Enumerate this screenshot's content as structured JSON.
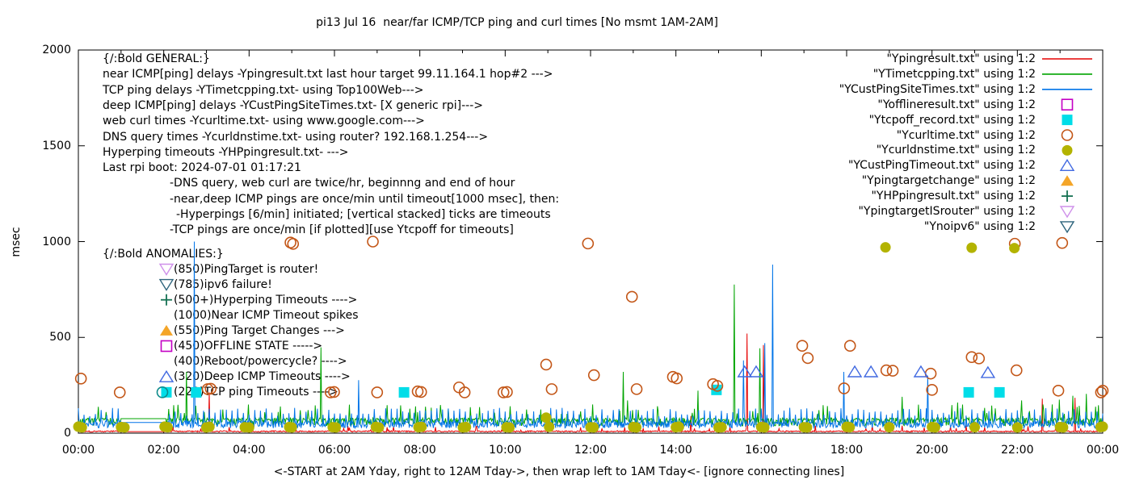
{
  "title": "pi13 Jul 16  near/far ICMP/TCP ping and curl times [No msmt 1AM-2AM]",
  "ylabel": "msec",
  "xlabel": "<-START at 2AM Yday, right to 12AM Tday->, then wrap left to 1AM Tday<- [ignore connecting lines]",
  "axes": {
    "x_tick_labels": [
      "00:00",
      "02:00",
      "04:00",
      "06:00",
      "08:00",
      "10:00",
      "12:00",
      "14:00",
      "16:00",
      "18:00",
      "20:00",
      "22:00",
      "00:00"
    ],
    "y_tick_labels": [
      "0",
      "500",
      "1000",
      "1500",
      "2000"
    ]
  },
  "legend": {
    "rows": [
      {
        "label": "\"Ypingresult.txt\" using 1:2",
        "swatch": "line",
        "color": "#e60000"
      },
      {
        "label": "\"YTimetcpping.txt\" using 1:2",
        "swatch": "line",
        "color": "#00a400"
      },
      {
        "label": "\"YCustPingSiteTimes.txt\" using 1:2",
        "swatch": "line",
        "color": "#0074e8"
      },
      {
        "label": "\"Yofflineresult.txt\" using 1:2",
        "swatch": "square-open",
        "color": "#c400c4"
      },
      {
        "label": "\"Ytcpoff_record.txt\" using 1:2",
        "swatch": "square-filled",
        "color": "#00dde8"
      },
      {
        "label": "\"Ycurltime.txt\" using 1:2",
        "swatch": "circle-open",
        "color": "#c35617"
      },
      {
        "label": "\"Ycurldnstime.txt\" using 1:2",
        "swatch": "circle-filled",
        "color": "#b3b300"
      },
      {
        "label": "\"YCustPingTimeout.txt\" using 1:2",
        "swatch": "triangle-up-open",
        "color": "#4169e1"
      },
      {
        "label": "\"Ypingtargetchange\" using 1:2",
        "swatch": "triangle-up-filled",
        "color": "#f4a528"
      },
      {
        "label": "\"YHPpingresult.txt\" using 1:2",
        "swatch": "plus",
        "color": "#157152"
      },
      {
        "label": "\"YpingtargetISrouter\" using 1:2",
        "swatch": "triangle-down-open",
        "color": "#cf90ea"
      },
      {
        "label": "\"Ynoipv6\" using 1:2",
        "swatch": "triangle-down-open",
        "color": "#2e657d"
      }
    ]
  },
  "annotations": {
    "general": {
      "lines": [
        {
          "text": "{/:Bold GENERAL:}",
          "indent": 0
        },
        {
          "text": "near ICMP[ping] delays -Ypingresult.txt last hour target 99.11.164.1 hop#2 --->",
          "indent": 0
        },
        {
          "text": "TCP ping delays -YTimetcpping.txt- using Top100Web--->",
          "indent": 0
        },
        {
          "text": "deep ICMP[ping] delays -YCustPingSiteTimes.txt- [X generic rpi]--->",
          "indent": 0
        },
        {
          "text": "web curl times -Ycurltime.txt- using www.google.com--->",
          "indent": 0
        },
        {
          "text": "DNS query times -Ycurldnstime.txt- using router? 192.168.1.254--->",
          "indent": 0
        },
        {
          "text": "Hyperping timeouts -YHPpingresult.txt- --->",
          "indent": 0
        },
        {
          "text": "Last rpi boot: 2024-07-01 01:17:21",
          "indent": 0
        },
        {
          "text": "-DNS query, web curl are twice/hr, beginnng and end of hour",
          "indent": 1
        },
        {
          "text": "-near,deep ICMP pings are once/min until timeout[1000 msec], then:",
          "indent": 1
        },
        {
          "text": "-Hyperpings [6/min] initiated; [vertical stacked] ticks are timeouts",
          "indent": 2
        },
        {
          "text": "-TCP pings are once/min [if plotted][use Ytcpoff for timeouts]",
          "indent": 1
        }
      ]
    },
    "anomalies": {
      "header": "{/:Bold ANOMALIES:}",
      "rows": [
        {
          "text": "(850)PingTarget is router!",
          "markers": [
            {
              "type": "triangle-down-open",
              "color": "#cf90ea"
            }
          ]
        },
        {
          "text": "(785)ipv6 failure!",
          "markers": [
            {
              "type": "triangle-down-open",
              "color": "#2e657d"
            }
          ]
        },
        {
          "text": "(500+)Hyperping Timeouts ---->",
          "markers": [
            {
              "type": "plus",
              "color": "#157152"
            }
          ]
        },
        {
          "text": "(1000)Near ICMP Timeout spikes",
          "markers": []
        },
        {
          "text": "(550)Ping Target Changes --->",
          "markers": [
            {
              "type": "triangle-up-filled",
              "color": "#f4a528"
            }
          ]
        },
        {
          "text": "(450)OFFLINE STATE ----->",
          "markers": [
            {
              "type": "square-open",
              "color": "#c400c4"
            }
          ]
        },
        {
          "text": "(400)Reboot/powercycle? ---->",
          "markers": []
        },
        {
          "text": "(320)Deep ICMP Timeouts ---->",
          "markers": [
            {
              "type": "triangle-up-open",
              "color": "#4169e1"
            }
          ]
        },
        {
          "text": "(220)TCP ping Timeouts ---->",
          "markers": [
            {
              "type": "square-filled",
              "color": "#00dde8"
            },
            {
              "type": "circle-open",
              "color": "#0e8b8b"
            }
          ]
        }
      ]
    }
  },
  "chart_data": {
    "type": "line+scatter",
    "x_range_hours": [
      0,
      24
    ],
    "y_range_msec": [
      0,
      2000
    ],
    "x_major_tick_hours": 2,
    "x_minor_tick_hours": 1,
    "y_major_tick": 500,
    "grid": false,
    "legend_position": "top-right",
    "no_measurement_gap_hours": [
      1.0,
      2.06
    ],
    "series": [
      {
        "name": "Ypingresult.txt",
        "desc": "near ICMP ping delays",
        "type": "line",
        "color": "#e60000",
        "profile": "near-icmp",
        "seed": 101,
        "gap_value": 8,
        "spikes": [
          [
            3.06,
            213
          ],
          [
            14.35,
            90
          ],
          [
            15.67,
            520
          ],
          [
            16.05,
            460
          ],
          [
            22.58,
            180
          ],
          [
            23.35,
            185
          ]
        ]
      },
      {
        "name": "YTimetcpping.txt",
        "desc": "TCP ping delays",
        "type": "line",
        "color": "#00a400",
        "profile": "tcp",
        "seed": 202,
        "gap_value": 76,
        "spikes": [
          [
            2.53,
            320
          ],
          [
            5.68,
            448
          ],
          [
            10.5,
            124
          ],
          [
            12.05,
            150
          ],
          [
            12.76,
            320
          ],
          [
            12.86,
            171
          ],
          [
            14.52,
            222
          ],
          [
            15.37,
            776
          ],
          [
            15.97,
            443
          ],
          [
            19.3,
            190
          ],
          [
            20.6,
            160
          ],
          [
            22.1,
            171
          ],
          [
            22.6,
            150
          ],
          [
            22.98,
            175
          ],
          [
            23.3,
            195
          ],
          [
            23.62,
            205
          ]
        ]
      },
      {
        "name": "YCustPingSiteTimes.txt",
        "desc": "deep ICMP ping delays",
        "type": "line",
        "color": "#0074e8",
        "profile": "deep-icmp",
        "seed": 303,
        "gap_value": 56,
        "spikes": [
          [
            2.72,
            1000
          ],
          [
            6.57,
            277
          ],
          [
            15.58,
            380
          ],
          [
            16.09,
            470
          ],
          [
            16.26,
            880
          ],
          [
            17.93,
            320
          ],
          [
            19.9,
            300
          ]
        ]
      }
    ],
    "scatter": [
      {
        "name": "Yofflineresult.txt",
        "marker": "square-open",
        "color": "#c400c4",
        "points": []
      },
      {
        "name": "Ytcpoff_record.txt",
        "marker": "square-filled",
        "color": "#00dde8",
        "points": [
          [
            2.76,
            213
          ],
          [
            7.63,
            213
          ],
          [
            14.95,
            226
          ],
          [
            20.86,
            213
          ],
          [
            21.58,
            213
          ]
        ]
      },
      {
        "name": "Ycurltime.txt",
        "marker": "circle-open",
        "color": "#c35617",
        "points": [
          [
            0.06,
            285
          ],
          [
            0.97,
            213
          ],
          [
            3.03,
            230
          ],
          [
            3.1,
            232
          ],
          [
            4.97,
            995
          ],
          [
            5.03,
            988
          ],
          [
            5.91,
            213
          ],
          [
            5.99,
            215
          ],
          [
            6.9,
            1000
          ],
          [
            7.0,
            213
          ],
          [
            7.95,
            218
          ],
          [
            8.03,
            215
          ],
          [
            8.92,
            239
          ],
          [
            9.05,
            213
          ],
          [
            9.96,
            213
          ],
          [
            10.04,
            215
          ],
          [
            10.96,
            358
          ],
          [
            11.09,
            230
          ],
          [
            11.94,
            990
          ],
          [
            12.08,
            303
          ],
          [
            12.97,
            712
          ],
          [
            13.08,
            230
          ],
          [
            13.93,
            294
          ],
          [
            14.02,
            286
          ],
          [
            14.87,
            256
          ],
          [
            14.97,
            247
          ],
          [
            16.96,
            456
          ],
          [
            17.09,
            392
          ],
          [
            17.94,
            234
          ],
          [
            18.08,
            456
          ],
          [
            18.93,
            328
          ],
          [
            19.08,
            326
          ],
          [
            19.97,
            311
          ],
          [
            20.0,
            226
          ],
          [
            20.93,
            397
          ],
          [
            21.1,
            390
          ],
          [
            21.94,
            989
          ],
          [
            21.98,
            328
          ],
          [
            22.96,
            222
          ],
          [
            23.05,
            993
          ],
          [
            23.96,
            213
          ],
          [
            24.0,
            222
          ]
        ]
      },
      {
        "name": "Ycurldnstime.txt",
        "marker": "circle-filled",
        "color": "#b3b300",
        "points": [
          [
            0.0,
            34
          ],
          [
            0.08,
            30
          ],
          [
            1.0,
            32
          ],
          [
            1.08,
            30
          ],
          [
            2.02,
            34
          ],
          [
            2.09,
            31
          ],
          [
            3.0,
            30
          ],
          [
            3.07,
            33
          ],
          [
            3.9,
            31
          ],
          [
            4.0,
            30
          ],
          [
            4.94,
            32
          ],
          [
            5.0,
            30
          ],
          [
            5.96,
            31
          ],
          [
            6.03,
            30
          ],
          [
            6.97,
            33
          ],
          [
            7.04,
            30
          ],
          [
            7.97,
            31
          ],
          [
            8.04,
            33
          ],
          [
            9.01,
            30
          ],
          [
            9.08,
            32
          ],
          [
            10.03,
            31
          ],
          [
            10.1,
            30
          ],
          [
            10.96,
            81
          ],
          [
            11.03,
            33
          ],
          [
            12.0,
            31
          ],
          [
            12.07,
            30
          ],
          [
            13.0,
            32
          ],
          [
            13.07,
            30
          ],
          [
            14.0,
            31
          ],
          [
            14.07,
            33
          ],
          [
            15.0,
            30
          ],
          [
            15.07,
            31
          ],
          [
            16.0,
            32
          ],
          [
            16.07,
            30
          ],
          [
            17.0,
            31
          ],
          [
            17.07,
            30
          ],
          [
            18.0,
            33
          ],
          [
            18.07,
            31
          ],
          [
            18.91,
            970
          ],
          [
            19.0,
            31
          ],
          [
            20.0,
            32
          ],
          [
            20.07,
            30
          ],
          [
            20.93,
            968
          ],
          [
            21.0,
            31
          ],
          [
            21.93,
            966
          ],
          [
            22.0,
            30
          ],
          [
            23.0,
            32
          ],
          [
            23.07,
            30
          ],
          [
            23.95,
            32
          ],
          [
            24.0,
            34
          ]
        ]
      },
      {
        "name": "YCustPingTimeout.txt",
        "marker": "triangle-up-open",
        "color": "#4169e1",
        "points": [
          [
            15.61,
            320
          ],
          [
            15.88,
            320
          ],
          [
            18.19,
            320
          ],
          [
            18.57,
            320
          ],
          [
            19.74,
            320
          ],
          [
            21.31,
            316
          ]
        ]
      },
      {
        "name": "Ypingtargetchange",
        "marker": "triangle-up-filled",
        "color": "#f4a528",
        "points": []
      },
      {
        "name": "YHPpingresult.txt",
        "marker": "plus",
        "color": "#157152",
        "points": []
      },
      {
        "name": "YpingtargetISrouter",
        "marker": "triangle-down-open",
        "color": "#cf90ea",
        "points": []
      },
      {
        "name": "Ynoipv6",
        "marker": "triangle-down-open",
        "color": "#2e657d",
        "points": []
      }
    ]
  }
}
